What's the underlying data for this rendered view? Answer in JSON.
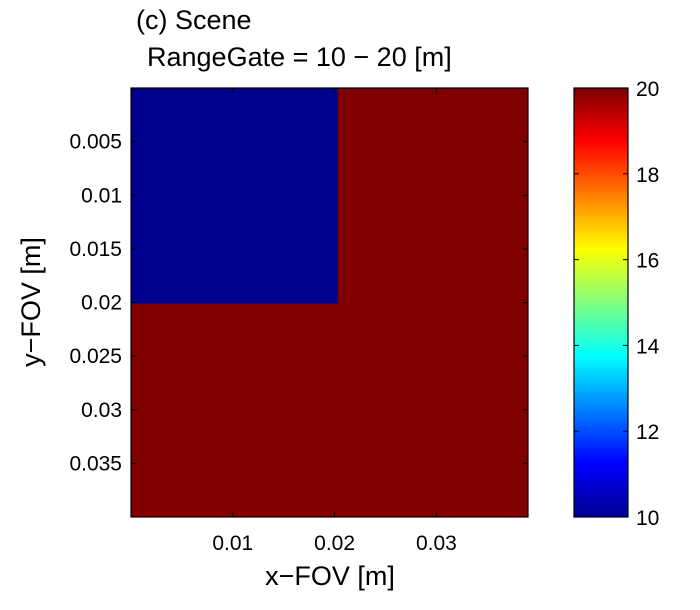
{
  "chart_data": {
    "type": "heatmap",
    "title": "(c) Scene",
    "subtitle": "RangeGate = 10 − 20 [m]",
    "xlabel": "x−FOV [m]",
    "ylabel": "y−FOV [m]",
    "xlim": [
      0.0,
      0.039
    ],
    "ylim": [
      0.0,
      0.04
    ],
    "y_reversed": true,
    "x_ticks": [
      0.01,
      0.02,
      0.03
    ],
    "x_tick_labels": [
      "0.01",
      "0.02",
      "0.03"
    ],
    "y_ticks": [
      0.005,
      0.01,
      0.015,
      0.02,
      0.025,
      0.03,
      0.035
    ],
    "y_tick_labels": [
      "0.005",
      "0.01",
      "0.015",
      "0.02",
      "0.025",
      "0.03",
      "0.035"
    ],
    "regions": [
      {
        "x": [
          0.0,
          0.039
        ],
        "y": [
          0.0,
          0.04
        ],
        "value": 20
      },
      {
        "x": [
          0.0,
          0.0203
        ],
        "y": [
          0.0,
          0.0201
        ],
        "value": 10
      }
    ],
    "colorbar": {
      "colormap": "jet",
      "range": [
        10,
        20
      ],
      "ticks": [
        10,
        12,
        14,
        16,
        18,
        20
      ],
      "tick_labels": [
        "10",
        "12",
        "14",
        "16",
        "18",
        "20"
      ]
    }
  }
}
